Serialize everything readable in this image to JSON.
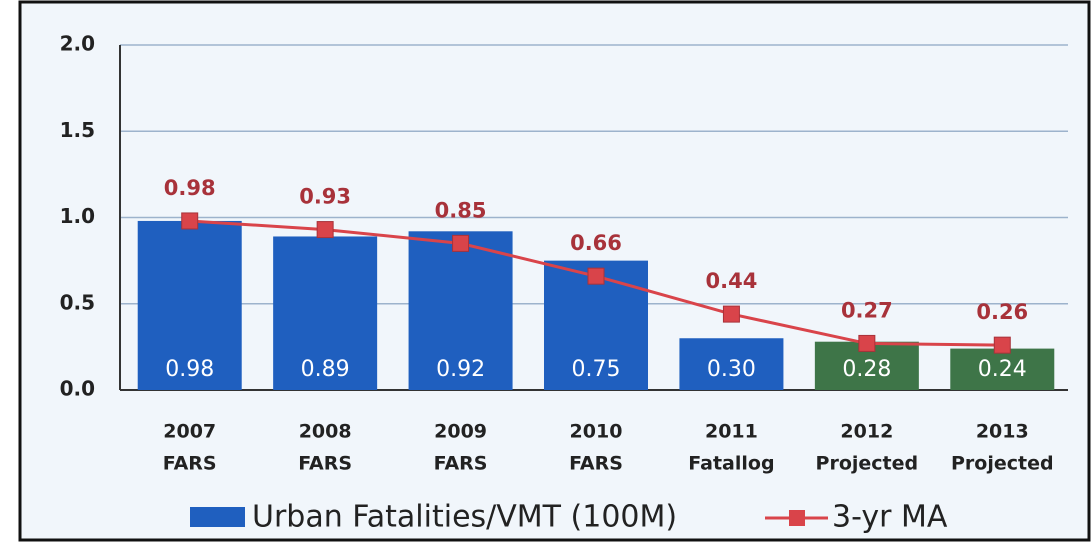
{
  "chart_data": {
    "type": "bar",
    "categories": [
      [
        "2007",
        "FARS"
      ],
      [
        "2008",
        "FARS"
      ],
      [
        "2009",
        "FARS"
      ],
      [
        "2010",
        "FARS"
      ],
      [
        "2011",
        "Fatallog"
      ],
      [
        "2012",
        "Projected"
      ],
      [
        "2013",
        "Projected"
      ]
    ],
    "series": [
      {
        "name": "Urban Fatalities/VMT (100M)",
        "type": "bar",
        "color": "#1f5fbf",
        "colors": [
          "#1f5fbf",
          "#1f5fbf",
          "#1f5fbf",
          "#1f5fbf",
          "#1f5fbf",
          "#3e7548",
          "#3e7548"
        ],
        "values": [
          0.98,
          0.89,
          0.92,
          0.75,
          0.3,
          0.28,
          0.24
        ],
        "value_labels": [
          "0.98",
          "0.89",
          "0.92",
          "0.75",
          "0.30",
          "0.28",
          "0.24"
        ]
      },
      {
        "name": "3-yr MA",
        "type": "line",
        "color": "#d9444a",
        "values": [
          0.98,
          0.93,
          0.85,
          0.66,
          0.44,
          0.27,
          0.26
        ]
      }
    ],
    "ylim": [
      0,
      2
    ],
    "yticks": [
      {
        "value": 0,
        "label": "0.0"
      },
      0.5,
      {
        "value": 1,
        "label": "1.0"
      },
      1.5,
      {
        "value": 2,
        "label": "2.0"
      }
    ],
    "grid": true
  }
}
